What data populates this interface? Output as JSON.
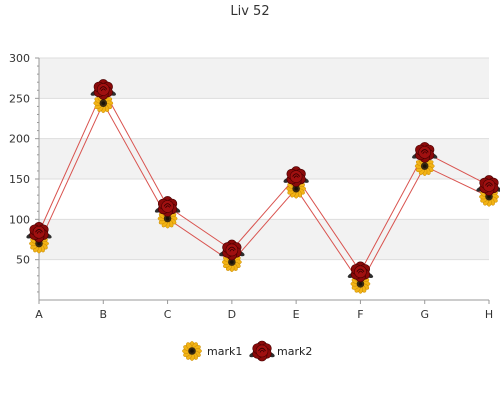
{
  "chart_data": {
    "type": "line",
    "title": "Liv 52",
    "categories": [
      "A",
      "B",
      "C",
      "D",
      "E",
      "F",
      "G",
      "H"
    ],
    "series": [
      {
        "name": "mark1",
        "values": [
          70,
          244,
          101,
          47,
          138,
          20,
          166,
          128
        ],
        "line_color": "#d9534f",
        "marker": "sunflower"
      },
      {
        "name": "mark2",
        "values": [
          84,
          261,
          116,
          62,
          153,
          35,
          183,
          142
        ],
        "line_color": "#d9534f",
        "marker": "rose"
      }
    ],
    "y_ticks": [
      50,
      100,
      150,
      200,
      250,
      300
    ],
    "ylim": [
      0,
      300
    ],
    "grid": true,
    "alternating_bands": true,
    "legend_position": "bottom-center",
    "colors": {
      "band": "#f2f2f2",
      "grid": "#dddddd",
      "axis": "#999999",
      "sunflower_petal": "#f2b315",
      "sunflower_center": "#3a2a10",
      "rose_petal": "#8b0a0a",
      "rose_leaf": "#2e2e2e"
    }
  }
}
